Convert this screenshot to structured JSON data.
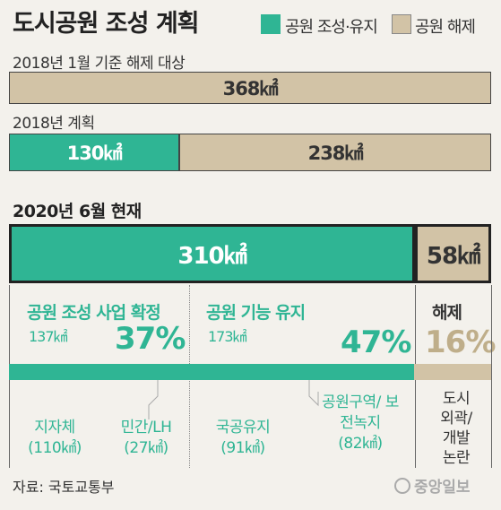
{
  "title": "도시공원 조성 계획",
  "legend": [
    {
      "label": "공원 조성·유지",
      "color": "#2fb594"
    },
    {
      "label": "공원 해제",
      "color": "#d2c3a6"
    }
  ],
  "chart_data": {
    "type": "bar",
    "unit": "㎢",
    "rows": [
      {
        "label": "2018년 1월 기준 해제 대상",
        "segments": [
          {
            "series": "공원 해제",
            "value": 368,
            "label": "368㎢"
          }
        ]
      },
      {
        "label": "2018년 계획",
        "segments": [
          {
            "series": "공원 조성·유지",
            "value": 130,
            "label": "130㎢"
          },
          {
            "series": "공원 해제",
            "value": 238,
            "label": "238㎢"
          }
        ]
      },
      {
        "label": "2020년 6월 현재",
        "segments": [
          {
            "series": "공원 조성·유지",
            "value": 310,
            "label": "310㎢"
          },
          {
            "series": "공원 해제",
            "value": 58,
            "label": "58㎢"
          }
        ]
      }
    ],
    "breakdown": [
      {
        "title": "공원 조성 사업 확정",
        "value": 137,
        "value_label": "137㎢",
        "percent": 37,
        "percent_label": "37%",
        "parts": [
          {
            "label": "지자체",
            "value": 110,
            "value_label": "(110㎢)"
          },
          {
            "label": "민간/LH",
            "value": 27,
            "value_label": "(27㎢)"
          }
        ]
      },
      {
        "title": "공원 기능 유지",
        "value": 173,
        "value_label": "173㎢",
        "percent": 47,
        "percent_label": "47%",
        "parts": [
          {
            "label": "국공유지",
            "value": 91,
            "value_label": "(91㎢)"
          },
          {
            "label": "공원구역/ 보전녹지",
            "value": 82,
            "value_label": "(82㎢)"
          }
        ]
      },
      {
        "title": "해제",
        "percent": 16,
        "percent_label": "16%",
        "note": "도시 외곽/ 개발 논란"
      }
    ]
  },
  "source": "자료: 국토교통부",
  "logo": "중앙일보"
}
